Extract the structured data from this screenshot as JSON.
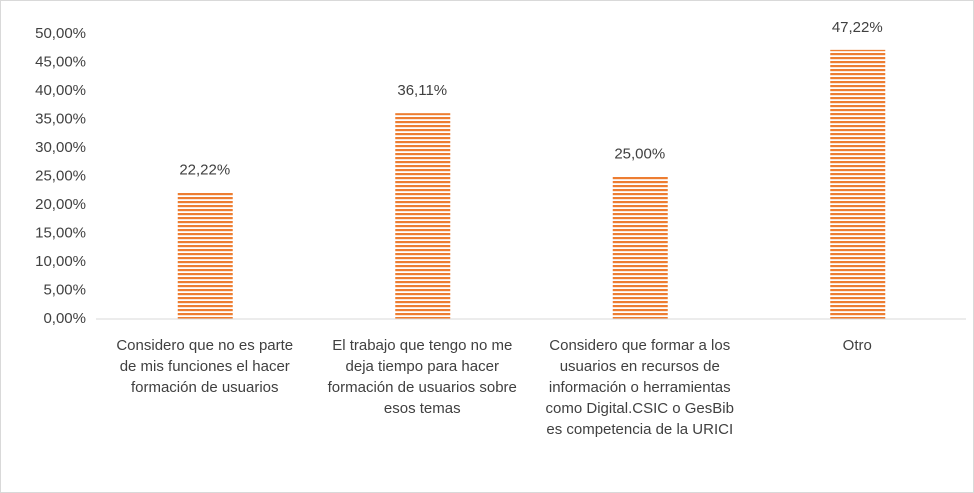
{
  "chart_data": {
    "type": "bar",
    "categories": [
      "Considero que no es parte de mis funciones el hacer formación de usuarios",
      "El trabajo que tengo no me deja tiempo para hacer formación de usuarios sobre esos temas",
      "Considero que formar a los usuarios en recursos de información o herramientas como Digital.CSIC o GesBib es competencia de la URICI",
      "Otro"
    ],
    "values": [
      22.22,
      36.11,
      25,
      47.22
    ],
    "value_labels": [
      "22,22%",
      "36,11%",
      "25,00%",
      "47,22%"
    ],
    "color": "#ed7d31",
    "ylim": [
      0,
      50
    ],
    "yticks": [
      {
        "value": 0,
        "label": "0,00%"
      },
      {
        "value": 5,
        "label": "5,00%"
      },
      {
        "value": 10,
        "label": "10,00%"
      },
      {
        "value": 15,
        "label": "15,00%"
      },
      {
        "value": 20,
        "label": "20,00%"
      },
      {
        "value": 25,
        "label": "25,00%"
      },
      {
        "value": 30,
        "label": "30,00%"
      },
      {
        "value": 35,
        "label": "35,00%"
      },
      {
        "value": 40,
        "label": "40,00%"
      },
      {
        "value": 45,
        "label": "45,00%"
      },
      {
        "value": 50,
        "label": "50,00%"
      }
    ],
    "grid": false
  }
}
